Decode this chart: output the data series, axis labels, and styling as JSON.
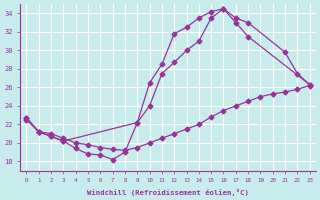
{
  "xlabel": "Windchill (Refroidissement éolien,°C)",
  "x_ticks": [
    0,
    1,
    2,
    3,
    4,
    5,
    6,
    7,
    8,
    9,
    10,
    11,
    12,
    13,
    14,
    15,
    16,
    17,
    18,
    19,
    20,
    21,
    22,
    23
  ],
  "ylim": [
    17,
    35
  ],
  "xlim": [
    -0.5,
    23.5
  ],
  "yticks": [
    18,
    20,
    22,
    24,
    26,
    28,
    30,
    32,
    34
  ],
  "bg_color": "#c8ecec",
  "line_color": "#993399",
  "grid_color": "#ffffff",
  "lineA_x": [
    0,
    1,
    2,
    3,
    9,
    10,
    11,
    12,
    13,
    14,
    15,
    16,
    17,
    18,
    21,
    22,
    23
  ],
  "lineA_y": [
    22.7,
    21.2,
    20.7,
    20.2,
    22.2,
    26.5,
    28.5,
    31.8,
    32.5,
    33.5,
    34.2,
    34.5,
    33.5,
    33.0,
    29.8,
    27.5,
    26.3
  ],
  "lineB_x": [
    0,
    1,
    2,
    3,
    4,
    5,
    6,
    7,
    8,
    9,
    10,
    11,
    12,
    13,
    14,
    15,
    16,
    17,
    18,
    23
  ],
  "lineB_y": [
    22.7,
    21.2,
    20.7,
    20.2,
    19.4,
    18.8,
    18.7,
    18.2,
    19.0,
    22.2,
    24.0,
    27.5,
    28.7,
    30.0,
    31.0,
    33.5,
    34.5,
    33.0,
    31.5,
    26.3
  ],
  "lineC_x": [
    0,
    1,
    2,
    3,
    4,
    5,
    6,
    7,
    8,
    9,
    10,
    11,
    12,
    13,
    14,
    15,
    16,
    17,
    18,
    19,
    20,
    21,
    22,
    23
  ],
  "lineC_y": [
    22.5,
    21.2,
    21.0,
    20.5,
    20.0,
    19.8,
    19.5,
    19.3,
    19.2,
    19.5,
    20.0,
    20.5,
    21.0,
    21.5,
    22.0,
    22.8,
    23.5,
    24.0,
    24.5,
    25.0,
    25.3,
    25.5,
    25.8,
    26.2
  ]
}
